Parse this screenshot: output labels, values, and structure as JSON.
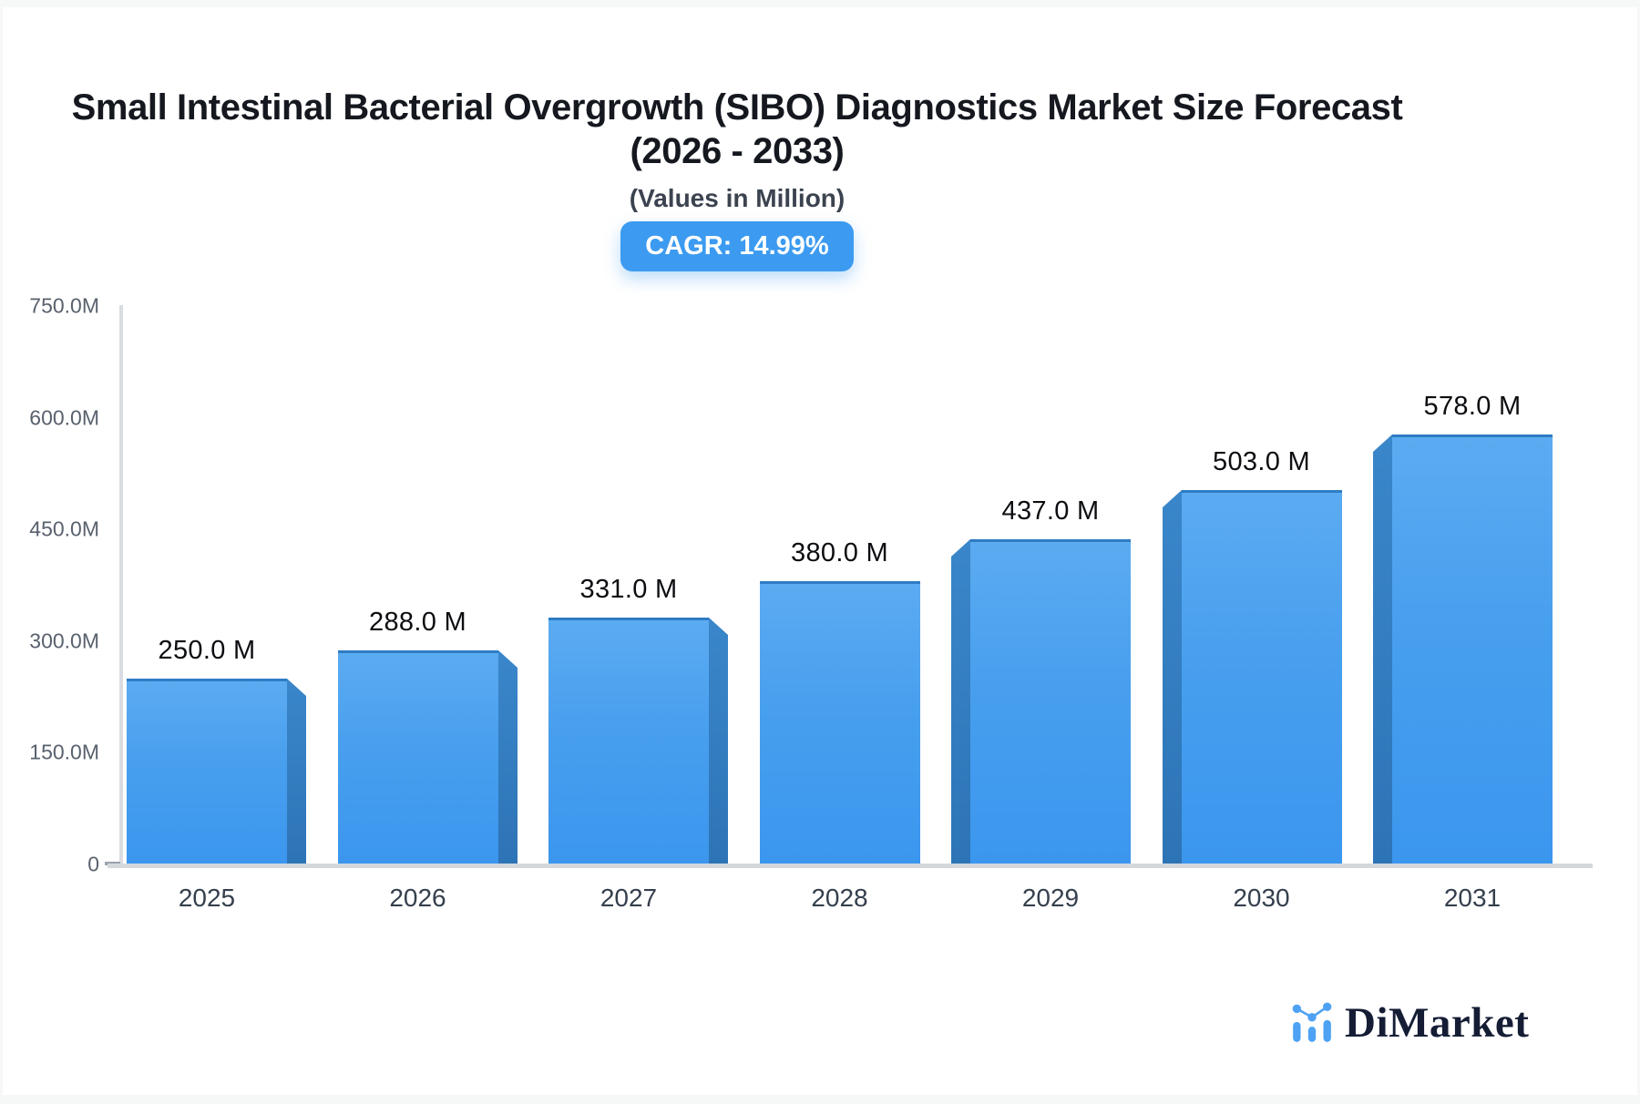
{
  "page": {
    "background_color": "#f6f8f8",
    "card_background_color": "#ffffff"
  },
  "header": {
    "title_line1": "Small Intestinal Bacterial Overgrowth (SIBO) Diagnostics Market Size Forecast",
    "title_line2": "(2026 - 2033)",
    "subtitle": "(Values in Million)",
    "cagr_badge": "CAGR: 14.99%",
    "badge_color": "#3c9bf0"
  },
  "chart_data": {
    "type": "bar",
    "title": "Small Intestinal Bacterial Overgrowth (SIBO) Diagnostics Market Size Forecast (2026 - 2033)",
    "subtitle": "(Values in Million)",
    "cagr_percent": 14.99,
    "categories": [
      "2025",
      "2026",
      "2027",
      "2028",
      "2029",
      "2030",
      "2031"
    ],
    "values": [
      250,
      288,
      331,
      380,
      437,
      503,
      578
    ],
    "value_labels": [
      "250.0 M",
      "288.0 M",
      "331.0 M",
      "380.0 M",
      "437.0 M",
      "503.0 M",
      "578.0 M"
    ],
    "unit": "Million",
    "xlabel": "",
    "ylabel": "",
    "ylim": [
      0,
      750
    ],
    "ytick_step": 150,
    "ytick_labels_bottom_to_top": [
      "0",
      "150.0M",
      "300.0M",
      "450.0M",
      "600.0M",
      "750.0M"
    ],
    "grid": false,
    "legend": "none",
    "bar_color_top": "#5babf1",
    "bar_color_bottom": "#3b96ee",
    "bar_side_color": "#2d74b6",
    "bar_top_edge_color": "#2e7cc4",
    "bar_style": "3d-bevel, side faces point toward chart center"
  },
  "branding": {
    "logo_text": "DiMarket",
    "logo_icon": "bar-line-chart-icon",
    "logo_icon_color": "#4da2f3",
    "logo_text_color": "#151d35"
  }
}
